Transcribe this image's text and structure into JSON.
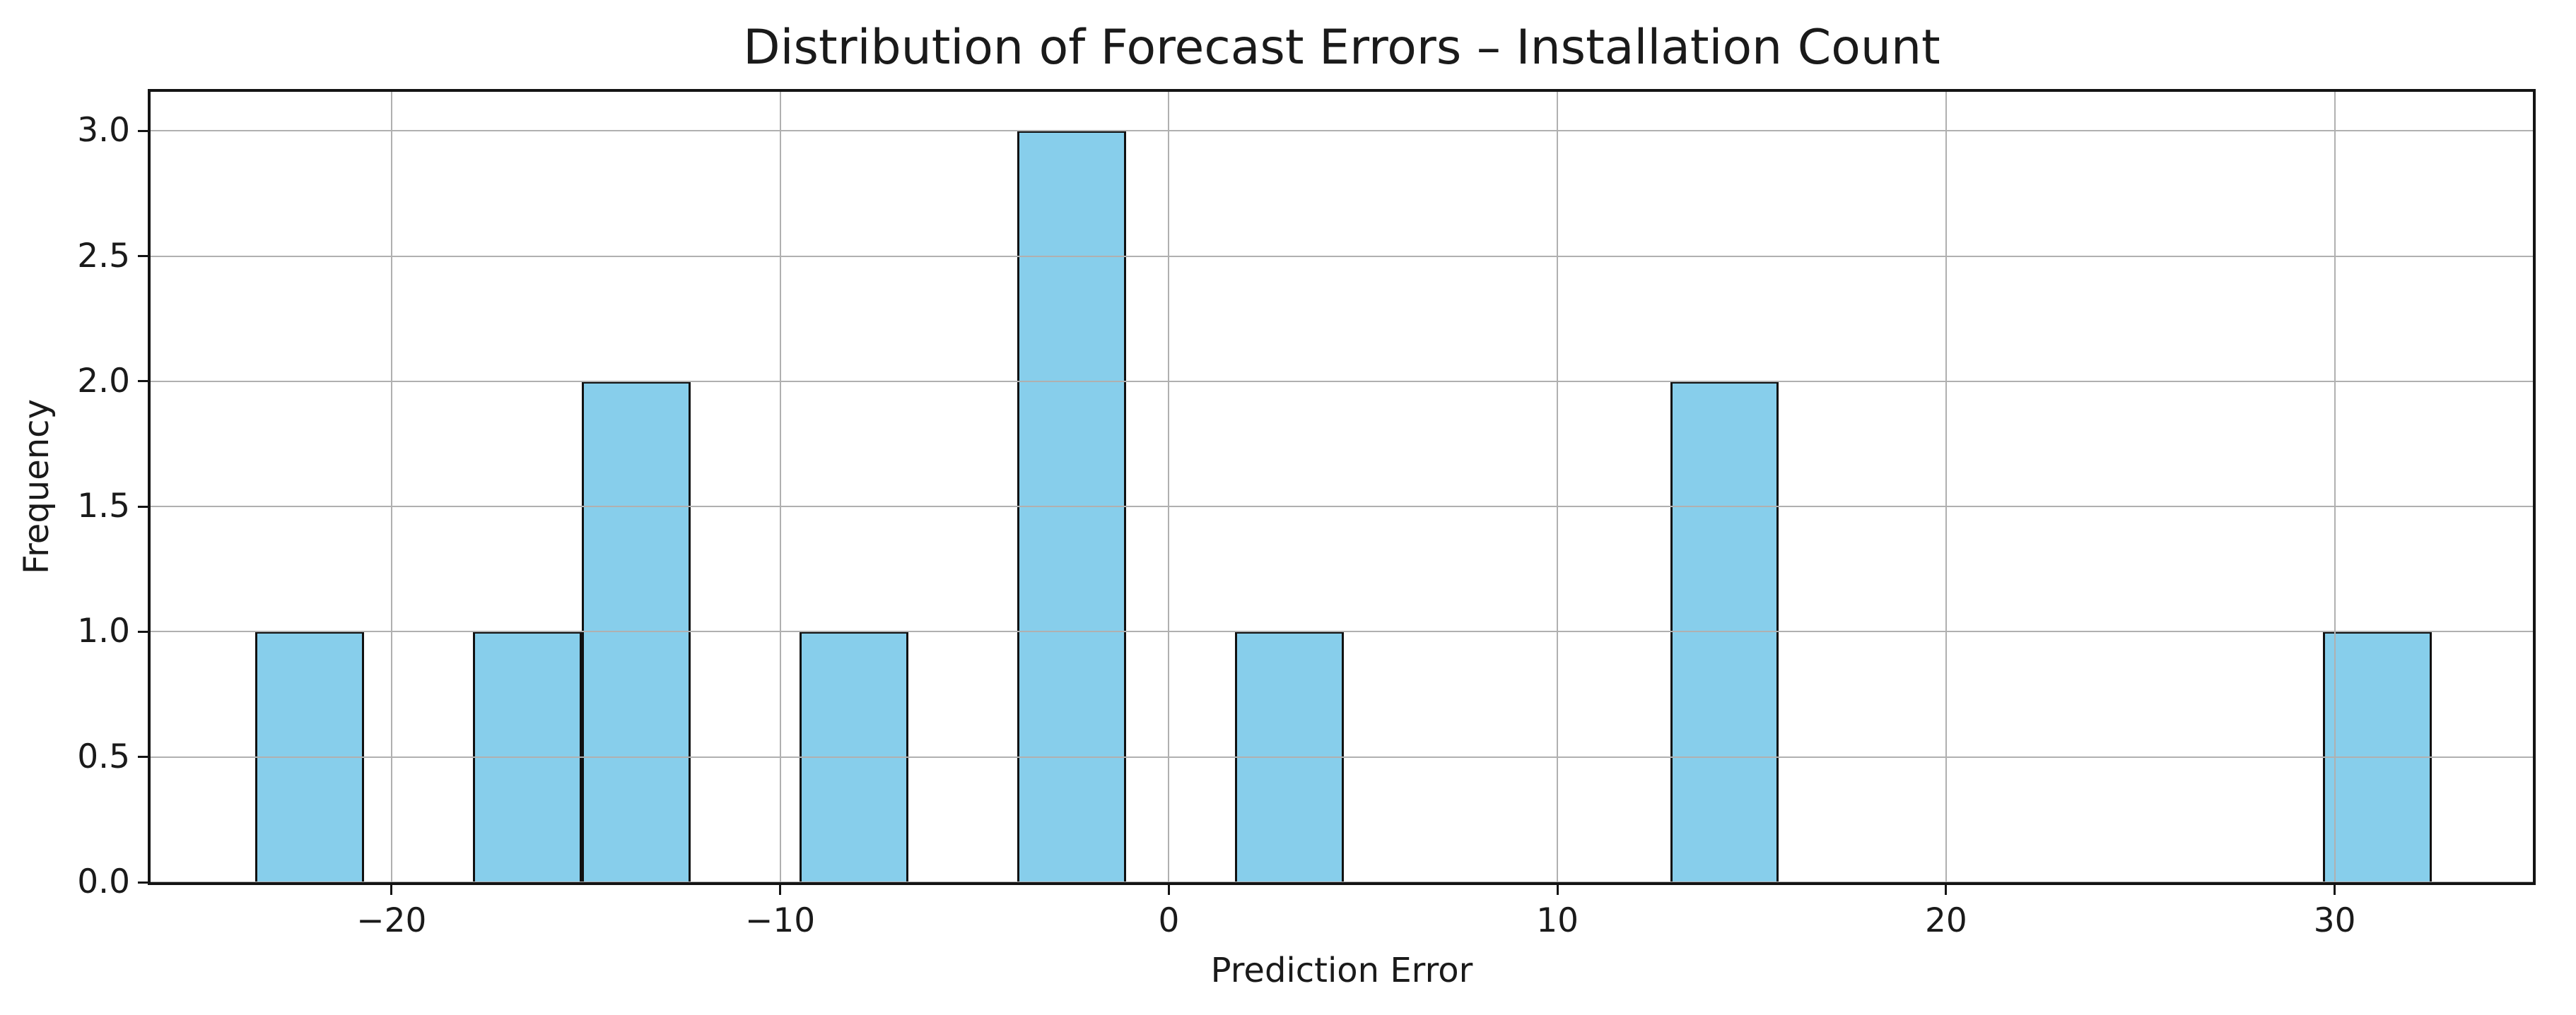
{
  "chart_data": {
    "type": "histogram",
    "title": "Distribution of Forecast Errors – Installation Count",
    "xlabel": "Prediction Error",
    "ylabel": "Frequency",
    "bin_width": 2.8,
    "bars": [
      {
        "x0": -23.5,
        "x1": -20.7,
        "count": 1
      },
      {
        "x0": -17.9,
        "x1": -15.1,
        "count": 1
      },
      {
        "x0": -15.1,
        "x1": -12.3,
        "count": 2
      },
      {
        "x0": -9.5,
        "x1": -6.7,
        "count": 1
      },
      {
        "x0": -3.9,
        "x1": -1.1,
        "count": 3
      },
      {
        "x0": 1.7,
        "x1": 4.5,
        "count": 1
      },
      {
        "x0": 12.9,
        "x1": 15.7,
        "count": 2
      },
      {
        "x0": 29.7,
        "x1": 32.5,
        "count": 1
      }
    ],
    "x_ticks": [
      {
        "v": -20,
        "label": "−20"
      },
      {
        "v": -10,
        "label": "−10"
      },
      {
        "v": 0,
        "label": "0"
      },
      {
        "v": 10,
        "label": "10"
      },
      {
        "v": 20,
        "label": "20"
      },
      {
        "v": 30,
        "label": "30"
      }
    ],
    "y_ticks": [
      {
        "v": 0.0,
        "label": "0.0"
      },
      {
        "v": 0.5,
        "label": "0.5"
      },
      {
        "v": 1.0,
        "label": "1.0"
      },
      {
        "v": 1.5,
        "label": "1.5"
      },
      {
        "v": 2.0,
        "label": "2.0"
      },
      {
        "v": 2.5,
        "label": "2.5"
      },
      {
        "v": 3.0,
        "label": "3.0"
      }
    ],
    "xlim": [
      -26.2,
      35.1
    ],
    "ylim": [
      0,
      3.156
    ],
    "grid": true,
    "grid_over_bars": true,
    "legend": false,
    "colors": {
      "bar_fill": "#87CEEB",
      "bar_edge": "#111111",
      "grid": "#b0b0b0",
      "spine": "#141414",
      "text": "#1a1a1a",
      "background": "#ffffff"
    }
  }
}
